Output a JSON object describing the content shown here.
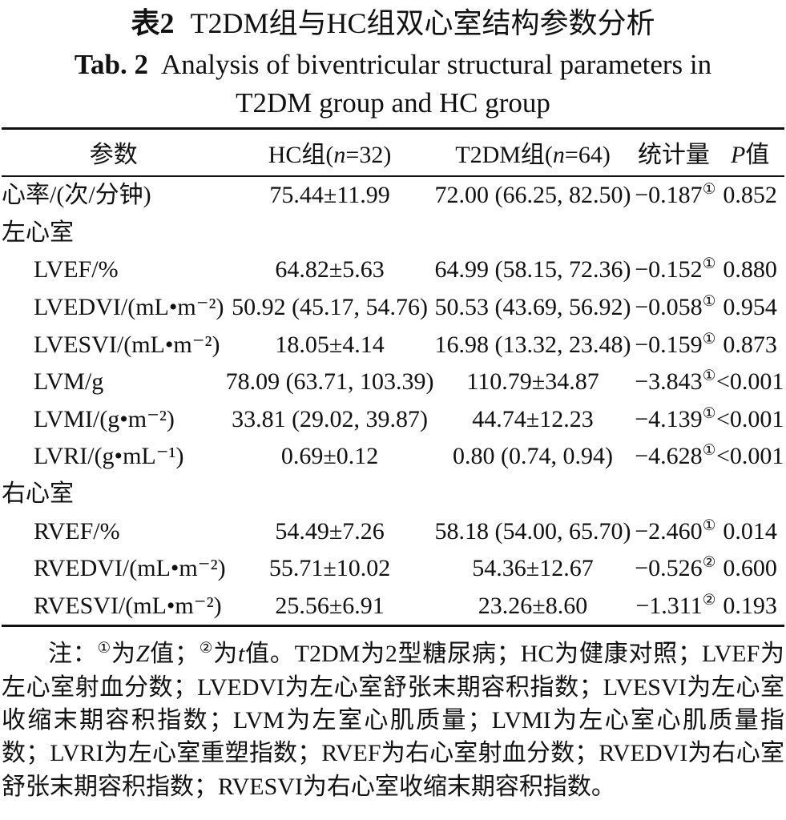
{
  "titles": {
    "zh_label": "表2",
    "zh_text": "T2DM组与HC组双心室结构参数分析",
    "en_label": "Tab. 2",
    "en_line1": "Analysis of biventricular structural parameters in",
    "en_line2": "T2DM group and HC group"
  },
  "table": {
    "columns": {
      "param": "参数",
      "hc": [
        {
          "text": "HC组("
        },
        {
          "text": "n",
          "italic": true
        },
        {
          "text": "=32)"
        }
      ],
      "t2dm": [
        {
          "text": "T2DM组("
        },
        {
          "text": "n",
          "italic": true
        },
        {
          "text": "=64)"
        }
      ],
      "stat": "统计量",
      "p": [
        {
          "text": "P",
          "italic": true
        },
        {
          "text": "值"
        }
      ]
    },
    "rows": [
      {
        "param": "心率/(次/分钟)",
        "hc": "75.44±11.99",
        "t2dm": "72.00 (66.25, 82.50)",
        "stat": "−0.187",
        "stat_sup": "①",
        "p": "0.852"
      },
      {
        "param": "左心室",
        "section": true
      },
      {
        "param": "LVEF/%",
        "hc": "64.82±5.63",
        "t2dm": "64.99 (58.15, 72.36)",
        "stat": "−0.152",
        "stat_sup": "①",
        "p": "0.880"
      },
      {
        "param": "LVEDVI/(mL•m⁻²)",
        "hc": "50.92 (45.17, 54.76)",
        "t2dm": "50.53 (43.69, 56.92)",
        "stat": "−0.058",
        "stat_sup": "①",
        "p": "0.954"
      },
      {
        "param": "LVESVI/(mL•m⁻²)",
        "hc": "18.05±4.14",
        "t2dm": "16.98 (13.32, 23.48)",
        "stat": "−0.159",
        "stat_sup": "①",
        "p": "0.873"
      },
      {
        "param": "LVM/g",
        "hc": "78.09 (63.71, 103.39)",
        "t2dm": "110.79±34.87",
        "stat": "−3.843",
        "stat_sup": "①",
        "p": "<0.001"
      },
      {
        "param": "LVMI/(g•m⁻²)",
        "hc": "33.81 (29.02, 39.87)",
        "t2dm": "44.74±12.23",
        "stat": "−4.139",
        "stat_sup": "①",
        "p": "<0.001"
      },
      {
        "param": "LVRI/(g•mL⁻¹)",
        "hc": "0.69±0.12",
        "t2dm": "0.80 (0.74, 0.94)",
        "stat": "−4.628",
        "stat_sup": "①",
        "p": "<0.001"
      },
      {
        "param": "右心室",
        "section": true
      },
      {
        "param": "RVEF/%",
        "hc": "54.49±7.26",
        "t2dm": "58.18 (54.00, 65.70)",
        "stat": "−2.460",
        "stat_sup": "①",
        "p": "0.014"
      },
      {
        "param": "RVEDVI/(mL•m⁻²)",
        "hc": "55.71±10.02",
        "t2dm": "54.36±12.67",
        "stat": "−0.526",
        "stat_sup": "②",
        "p": "0.600"
      },
      {
        "param": "RVESVI/(mL•m⁻²)",
        "hc": "25.56±6.91",
        "t2dm": "23.26±8.60",
        "stat": "−1.311",
        "stat_sup": "②",
        "p": "0.193"
      }
    ]
  },
  "footnote": {
    "segments": [
      {
        "text": "注："
      },
      {
        "text": "①",
        "sup": true
      },
      {
        "text": "为"
      },
      {
        "text": "Z",
        "italic": true
      },
      {
        "text": "值；"
      },
      {
        "text": "②",
        "sup": true
      },
      {
        "text": "为"
      },
      {
        "text": "t",
        "italic": true
      },
      {
        "text": "值。T2DM为2型糖尿病；HC为健康对照；LVEF为左心室射血分数；LVEDVI为左心室舒张末期容积指数；LVESVI为左心室收缩末期容积指数；LVM为左室心肌质量；LVMI为左心室心肌质量指数；LVRI为左心室重塑指数；RVEF为右心室射血分数；RVEDVI为右心室舒张末期容积指数；RVESVI为右心室收缩末期容积指数。"
      }
    ]
  }
}
